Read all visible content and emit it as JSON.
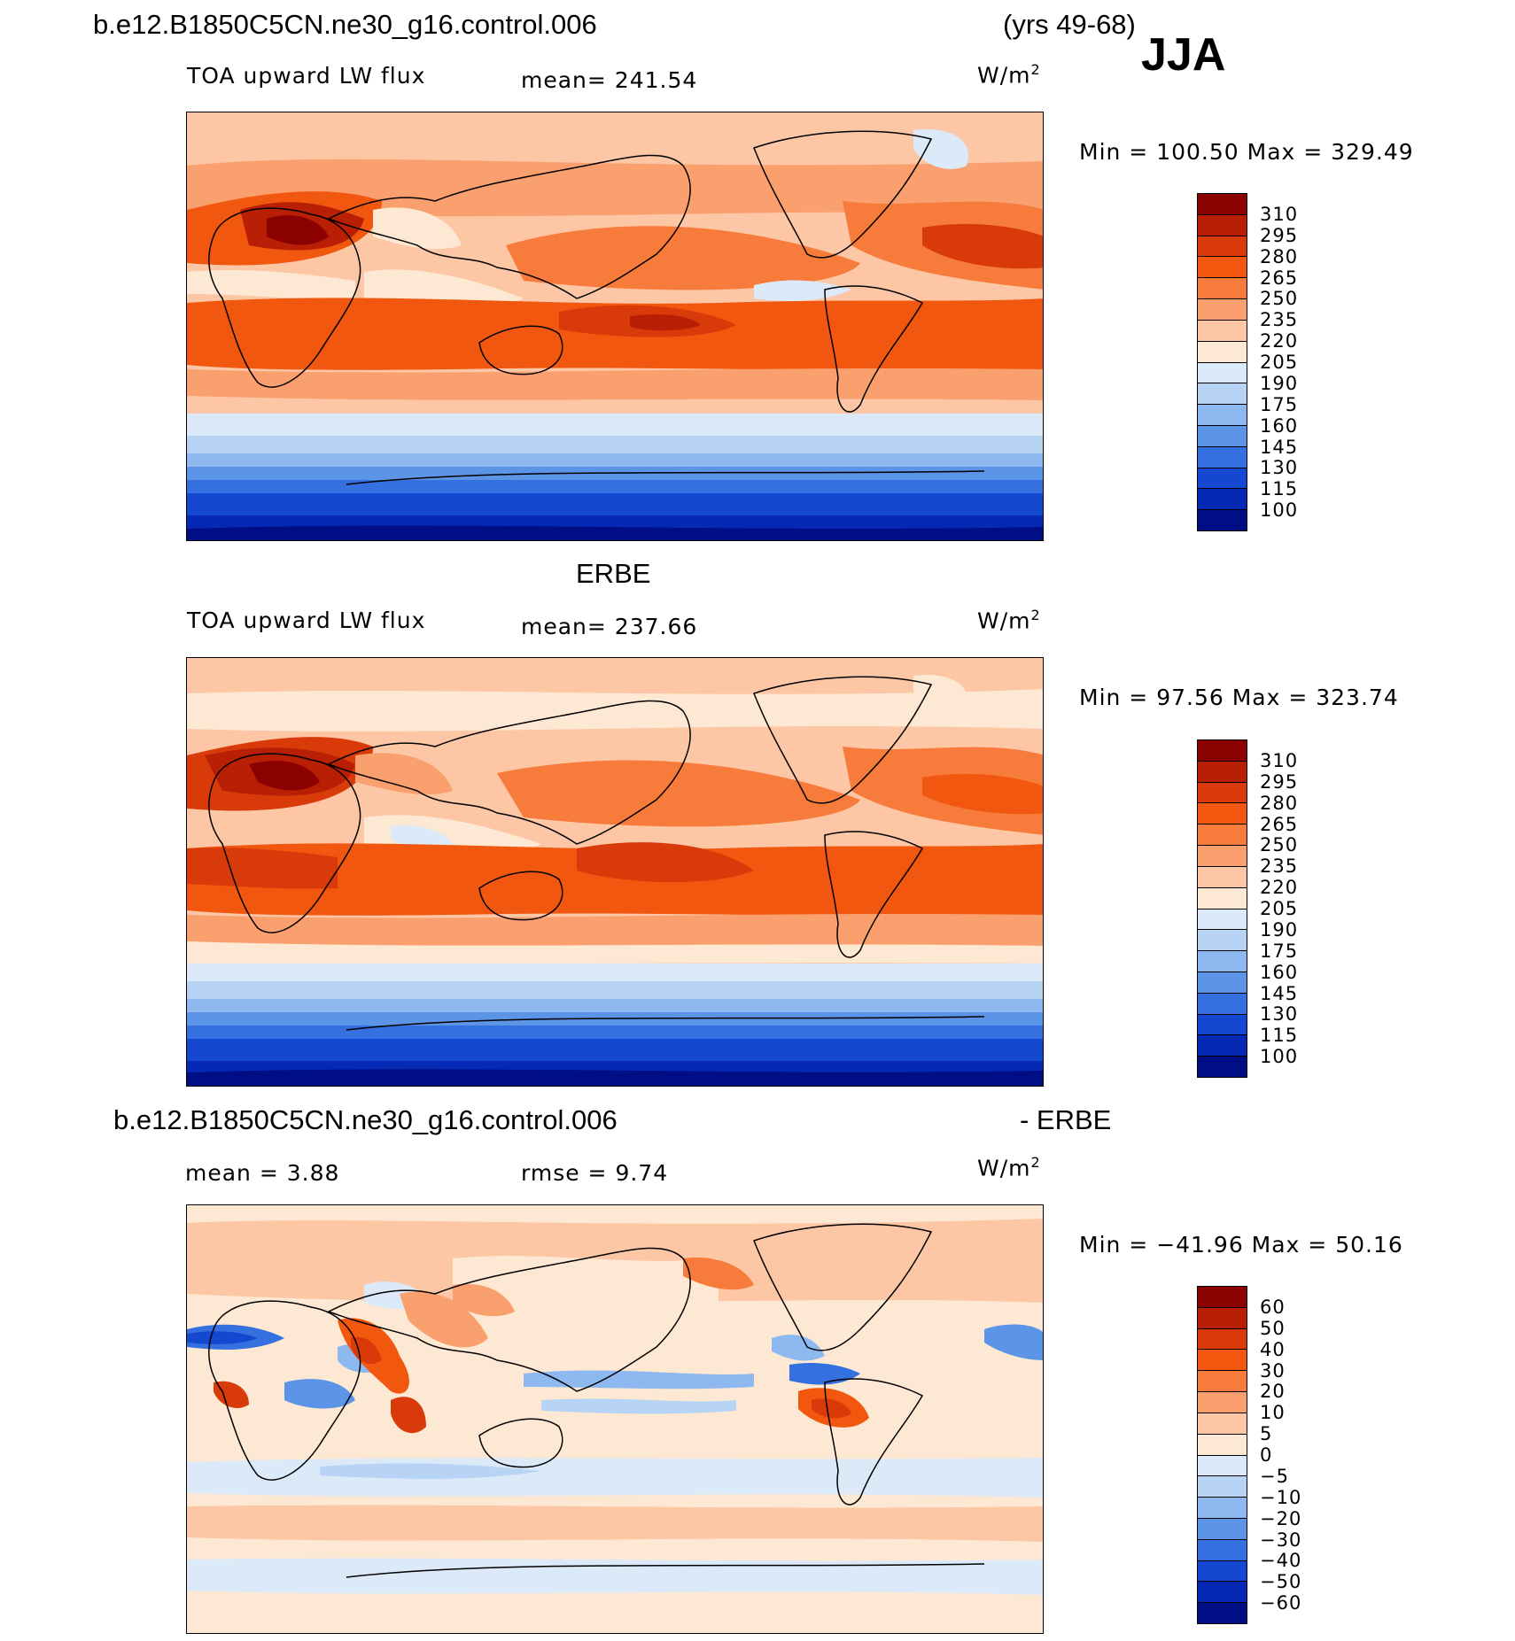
{
  "header": {
    "case_name": "b.e12.B1850C5CN.ne30_g16.control.006",
    "years": "(yrs 49-68)",
    "season": "JJA"
  },
  "panels": [
    {
      "id": "model",
      "title": "",
      "variable": "TOA upward LW flux",
      "stat_text": "mean= 241.54",
      "units_base": "W/m",
      "units_exp": "2",
      "minmax": "Min = 100.50 Max = 329.49",
      "levels": [
        "310",
        "295",
        "280",
        "265",
        "250",
        "235",
        "220",
        "205",
        "190",
        "175",
        "160",
        "145",
        "130",
        "115",
        "100"
      ],
      "colors": [
        "#8b0000",
        "#b81f05",
        "#d93a0a",
        "#f2570f",
        "#f77b3a",
        "#fa9f6e",
        "#fdc6a5",
        "#fde8d3",
        "#dbe9f9",
        "#b8d4f5",
        "#8db8f0",
        "#5c95e8",
        "#3570e0",
        "#1448d0",
        "#0629b5",
        "#000e85"
      ],
      "stats": {
        "mean": 241.54,
        "min": 100.5,
        "max": 329.49
      }
    },
    {
      "id": "obs",
      "title": "ERBE",
      "variable": "TOA upward LW flux",
      "stat_text": "mean= 237.66",
      "units_base": "W/m",
      "units_exp": "2",
      "minmax": "Min =  97.56 Max = 323.74",
      "levels": [
        "310",
        "295",
        "280",
        "265",
        "250",
        "235",
        "220",
        "205",
        "190",
        "175",
        "160",
        "145",
        "130",
        "115",
        "100"
      ],
      "colors": [
        "#8b0000",
        "#b81f05",
        "#d93a0a",
        "#f2570f",
        "#f77b3a",
        "#fa9f6e",
        "#fdc6a5",
        "#fde8d3",
        "#dbe9f9",
        "#b8d4f5",
        "#8db8f0",
        "#5c95e8",
        "#3570e0",
        "#1448d0",
        "#0629b5",
        "#000e85"
      ],
      "stats": {
        "mean": 237.66,
        "min": 97.56,
        "max": 323.74
      }
    },
    {
      "id": "diff",
      "title_left": "b.e12.B1850C5CN.ne30_g16.control.006",
      "title_right": "- ERBE",
      "mean_text": "mean =    3.88",
      "rmse_text": "rmse =    9.74",
      "units_base": "W/m",
      "units_exp": "2",
      "minmax": "Min = −41.96 Max =   50.16",
      "levels": [
        "60",
        "50",
        "40",
        "30",
        "20",
        "10",
        "5",
        "0",
        "−5",
        "−10",
        "−20",
        "−30",
        "−40",
        "−50",
        "−60"
      ],
      "colors": [
        "#8b0000",
        "#b81f05",
        "#d93a0a",
        "#f2570f",
        "#f77b3a",
        "#fa9f6e",
        "#fdc6a5",
        "#fde8d3",
        "#dbe9f9",
        "#b8d4f5",
        "#8db8f0",
        "#5c95e8",
        "#3570e0",
        "#1448d0",
        "#0629b5",
        "#000e85"
      ],
      "stats": {
        "mean": 3.88,
        "rmse": 9.74,
        "min": -41.96,
        "max": 50.16
      }
    }
  ]
}
